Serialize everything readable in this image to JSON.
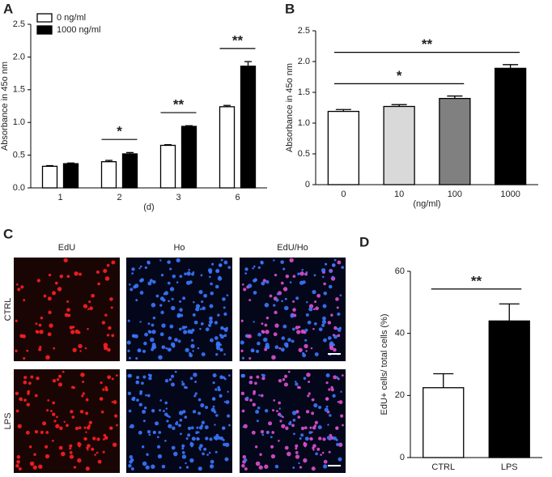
{
  "panel_labels": [
    "A",
    "B",
    "C",
    "D"
  ],
  "images": {
    "columns": [
      "EdU",
      "Ho",
      "EdU/Ho"
    ],
    "rows": [
      "CTRL",
      "LPS"
    ]
  },
  "chart_data": [
    {
      "type": "bar",
      "categories": [
        "1",
        "2",
        "3",
        "6"
      ],
      "xlabel": "(d)",
      "ylabel": "Absorbance in 45o nm",
      "series": [
        {
          "name": "0 ng/ml",
          "color": "#ffffff",
          "values": [
            0.33,
            0.4,
            0.65,
            1.24
          ],
          "errors": [
            0.01,
            0.02,
            0.01,
            0.02
          ]
        },
        {
          "name": "1000 ng/ml",
          "color": "#000000",
          "values": [
            0.37,
            0.52,
            0.94,
            1.86
          ],
          "errors": [
            0.01,
            0.02,
            0.01,
            0.07
          ]
        }
      ],
      "ylim": [
        0,
        2.5
      ],
      "yticks": [
        {
          "value": 0,
          "label": "0.0"
        },
        0.5,
        {
          "value": 1,
          "label": "1.0"
        },
        1.5,
        {
          "value": 2,
          "label": "2.0"
        },
        2.5
      ],
      "legend": "top-left",
      "annotations": [
        {
          "label": "*",
          "from": "2",
          "to": "2"
        },
        {
          "label": "**",
          "from": "3",
          "to": "3"
        },
        {
          "label": "**",
          "from": "6",
          "to": "6"
        }
      ]
    },
    {
      "type": "bar",
      "categories": [
        "0",
        "10",
        "100",
        "1000"
      ],
      "xlabel": "(ng/ml)",
      "ylabel": "Absorbance in 45o nm",
      "values": [
        1.19,
        1.27,
        1.4,
        1.89
      ],
      "errors": [
        0.03,
        0.03,
        0.04,
        0.06
      ],
      "colors": [
        "#ffffff",
        "#d9d9d9",
        "#808080",
        "#000000"
      ],
      "ylim": [
        0,
        2.5
      ],
      "yticks": [
        0,
        0.5,
        {
          "value": 1,
          "label": "1.0"
        },
        1.5,
        {
          "value": 2,
          "label": "2.0"
        },
        2.5
      ],
      "annotations": [
        {
          "label": "*",
          "from": "0",
          "to": "100"
        },
        {
          "label": "**",
          "from": "0",
          "to": "1000"
        }
      ]
    },
    {
      "type": "bar",
      "categories": [
        "CTRL",
        "LPS"
      ],
      "ylabel": "EdU+ cells/ total cells (%)",
      "values": [
        22.5,
        44
      ],
      "errors": [
        4.5,
        5.5
      ],
      "colors": [
        "#ffffff",
        "#000000"
      ],
      "ylim": [
        0,
        60
      ],
      "yticks": [
        0,
        20,
        40,
        60
      ],
      "annotations": [
        {
          "label": "**",
          "from": "CTRL",
          "to": "LPS"
        }
      ]
    }
  ]
}
